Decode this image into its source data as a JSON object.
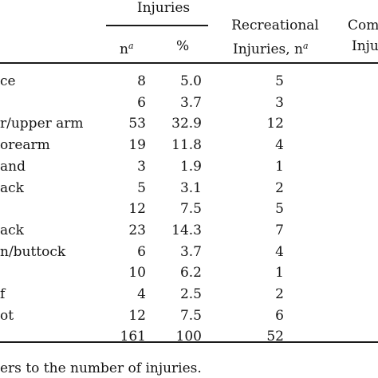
{
  "table": {
    "header": {
      "group_label": "Injuries",
      "n_label": "n",
      "n_sup": "a",
      "pct_label": "%",
      "recreational_line1": "Recreational",
      "recreational_line2": "Injuries, n",
      "recreational_sup": "a",
      "competitive_line1": "Com",
      "competitive_line2": "Inju"
    },
    "rows": [
      {
        "label": "ce",
        "n": "8",
        "pct": "5.0",
        "rec": "5"
      },
      {
        "label": "",
        "n": "6",
        "pct": "3.7",
        "rec": "3"
      },
      {
        "label": "r/upper arm",
        "n": "53",
        "pct": "32.9",
        "rec": "12"
      },
      {
        "label": "orearm",
        "n": "19",
        "pct": "11.8",
        "rec": "4"
      },
      {
        "label": "and",
        "n": "3",
        "pct": "1.9",
        "rec": "1"
      },
      {
        "label": "ack",
        "n": "5",
        "pct": "3.1",
        "rec": "2"
      },
      {
        "label": "",
        "n": "12",
        "pct": "7.5",
        "rec": "5"
      },
      {
        "label": "ack",
        "n": "23",
        "pct": "14.3",
        "rec": "7"
      },
      {
        "label": "n/buttock",
        "n": "6",
        "pct": "3.7",
        "rec": "4"
      },
      {
        "label": "",
        "n": "10",
        "pct": "6.2",
        "rec": "1"
      },
      {
        "label": "f",
        "n": "4",
        "pct": "2.5",
        "rec": "2"
      },
      {
        "label": "ot",
        "n": "12",
        "pct": "7.5",
        "rec": "6"
      },
      {
        "label": "",
        "n": "161",
        "pct": "100",
        "rec": "52"
      }
    ],
    "footnote": "ers to the number of injuries."
  }
}
